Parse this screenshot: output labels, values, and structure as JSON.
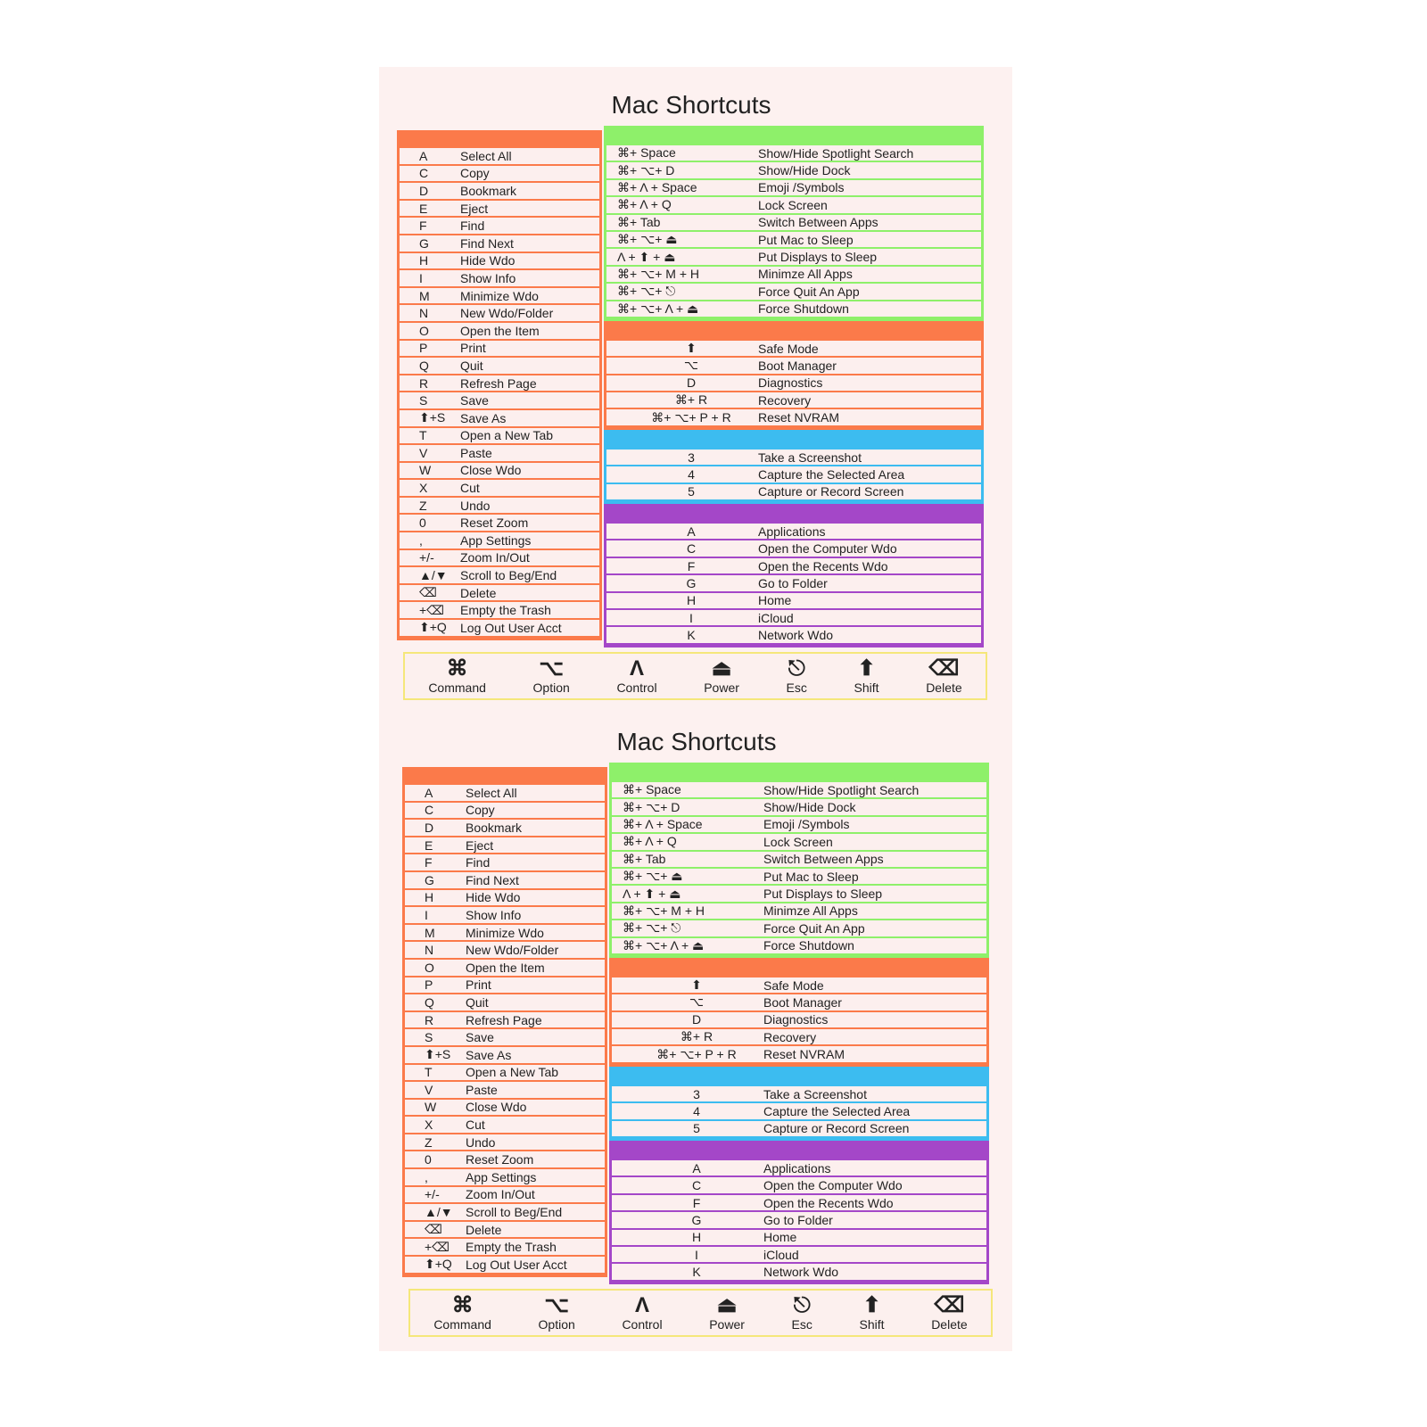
{
  "title": "Mac Shortcuts",
  "colors": {
    "orange": "#fb7a4a",
    "green": "#8ef06a",
    "blue": "#3cbcf0",
    "purple": "#a447c8",
    "legend_border": "#f5e77a"
  },
  "left_shortcuts": [
    [
      "A",
      "Select All"
    ],
    [
      "C",
      "Copy"
    ],
    [
      "D",
      "Bookmark"
    ],
    [
      "E",
      "Eject"
    ],
    [
      "F",
      "Find"
    ],
    [
      "G",
      "Find Next"
    ],
    [
      "H",
      "Hide Wdo"
    ],
    [
      "I",
      "Show Info"
    ],
    [
      "M",
      "Minimize Wdo"
    ],
    [
      "N",
      "New Wdo/Folder"
    ],
    [
      "O",
      "Open the Item"
    ],
    [
      "P",
      "Print"
    ],
    [
      "Q",
      "Quit"
    ],
    [
      "R",
      "Refresh Page"
    ],
    [
      "S",
      "Save"
    ],
    [
      "⬆+S",
      "Save As"
    ],
    [
      "T",
      "Open a New Tab"
    ],
    [
      "V",
      "Paste"
    ],
    [
      "W",
      "Close Wdo"
    ],
    [
      "X",
      "Cut"
    ],
    [
      "Z",
      "Undo"
    ],
    [
      "0",
      "Reset Zoom"
    ],
    [
      ",",
      "App Settings"
    ],
    [
      "+/-",
      "Zoom In/Out"
    ],
    [
      "▲/▼",
      "Scroll to Beg/End"
    ],
    [
      "⌫",
      "Delete"
    ],
    [
      "+⌫",
      "Empty the Trash"
    ],
    [
      "⬆+Q",
      "Log Out User Acct"
    ]
  ],
  "sections": [
    {
      "color": "green",
      "rows": [
        [
          "⌘+ Space",
          "Show/Hide Spotlight Search"
        ],
        [
          "⌘+ ⌥+ D",
          "Show/Hide  Dock"
        ],
        [
          "⌘+ Λ + Space",
          "Emoji /Symbols"
        ],
        [
          "⌘+ Λ + Q",
          "Lock Screen"
        ],
        [
          "⌘+ Tab",
          "Switch Between Apps"
        ],
        [
          "⌘+ ⌥+ ⏏",
          "Put Mac to Sleep"
        ],
        [
          "Λ + ⬆ + ⏏",
          "Put Displays to Sleep"
        ],
        [
          "⌘+ ⌥+ M + H",
          "Minimze All Apps"
        ],
        [
          "⌘+ ⌥+ ⎋",
          "Force Quit An App"
        ],
        [
          "⌘+ ⌥+ Λ + ⏏",
          "Force  Shutdown"
        ]
      ]
    },
    {
      "color": "orange",
      "rows": [
        [
          "⬆",
          "Safe Mode"
        ],
        [
          "⌥",
          "Boot Manager"
        ],
        [
          "D",
          "Diagnostics"
        ],
        [
          "⌘+ R",
          "Recovery"
        ],
        [
          "⌘+ ⌥+ P + R",
          "Reset NVRAM"
        ]
      ]
    },
    {
      "color": "blue",
      "rows": [
        [
          "3",
          "Take a Screenshot"
        ],
        [
          "4",
          "Capture the Selected Area"
        ],
        [
          "5",
          "Capture or Record Screen"
        ]
      ]
    },
    {
      "color": "purple",
      "rows": [
        [
          "A",
          "Applications"
        ],
        [
          "C",
          "Open the Computer Wdo"
        ],
        [
          "F",
          "Open the Recents Wdo"
        ],
        [
          "G",
          "Go to Folder"
        ],
        [
          "H",
          "Home"
        ],
        [
          "I",
          "iCloud"
        ],
        [
          "K",
          "Network Wdo"
        ]
      ]
    }
  ],
  "legend": [
    {
      "glyph": "⌘",
      "label": "Command",
      "icon": "command-icon"
    },
    {
      "glyph": "⌥",
      "label": "Option",
      "icon": "option-icon"
    },
    {
      "glyph": "Λ",
      "label": "Control",
      "icon": "control-icon"
    },
    {
      "glyph": "⏏",
      "label": "Power",
      "icon": "power-icon"
    },
    {
      "glyph": "⎋",
      "label": "Esc",
      "icon": "esc-icon"
    },
    {
      "glyph": "⬆",
      "label": "Shift",
      "icon": "shift-icon"
    },
    {
      "glyph": "⌫",
      "label": "Delete",
      "icon": "delete-icon"
    }
  ]
}
